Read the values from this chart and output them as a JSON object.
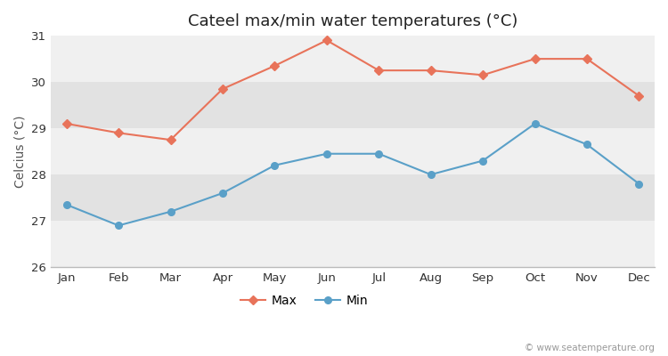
{
  "months": [
    "Jan",
    "Feb",
    "Mar",
    "Apr",
    "May",
    "Jun",
    "Jul",
    "Aug",
    "Sep",
    "Oct",
    "Nov",
    "Dec"
  ],
  "max_temps": [
    29.1,
    28.9,
    28.75,
    29.85,
    30.35,
    30.9,
    30.25,
    30.25,
    30.15,
    30.5,
    30.5,
    29.7
  ],
  "min_temps": [
    27.35,
    26.9,
    27.2,
    27.6,
    28.2,
    28.45,
    28.45,
    28.0,
    28.3,
    29.1,
    28.65,
    27.8
  ],
  "title": "Cateel max/min water temperatures (°C)",
  "ylabel": "Celcius (°C)",
  "ylim": [
    26,
    31
  ],
  "yticks": [
    26,
    27,
    28,
    29,
    30,
    31
  ],
  "max_color": "#e8735a",
  "min_color": "#5aa0c8",
  "fig_bg_color": "#ffffff",
  "band_light": "#f0f0f0",
  "band_dark": "#e2e2e2",
  "watermark": "© www.seatemperature.org",
  "legend_max": "Max",
  "legend_min": "Min",
  "title_fontsize": 13,
  "label_fontsize": 10,
  "tick_fontsize": 9.5
}
